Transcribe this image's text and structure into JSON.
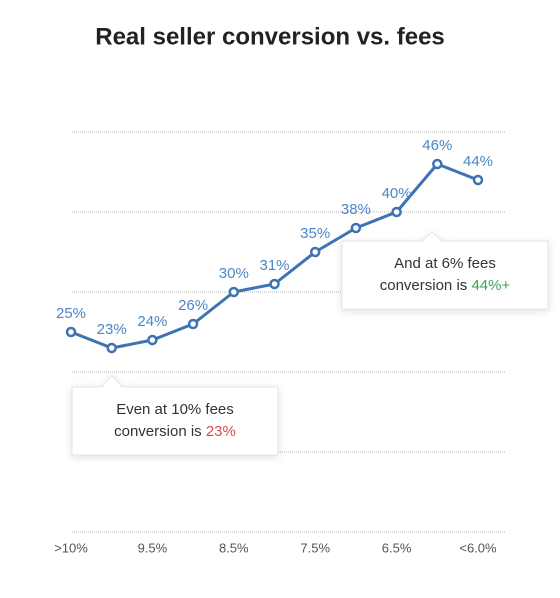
{
  "chart_data": {
    "type": "line",
    "title": "Real seller conversion vs. fees",
    "categories": [
      ">10%",
      null,
      "9.5%",
      null,
      "8.5%",
      null,
      "7.5%",
      null,
      "6.5%",
      null,
      "<6.0%"
    ],
    "series": [
      {
        "color": "#3d72b4",
        "values": [
          25,
          23,
          24,
          26,
          30,
          31,
          35,
          38,
          40,
          46,
          44
        ],
        "value_labels": [
          "25%",
          "23%",
          "24%",
          "26%",
          "30%",
          "31%",
          "35%",
          "38%",
          "40%",
          "46%",
          "44%"
        ]
      }
    ],
    "ylim": [
      0,
      50
    ],
    "yticks": [
      0,
      10,
      20,
      30,
      40,
      50
    ],
    "grid": true,
    "annotations": [
      {
        "lines": [
          "Even at 10% fees",
          "conversion is"
        ],
        "highlight": "23%",
        "highlight_color": "#e0474c"
      },
      {
        "lines": [
          "And at 6% fees",
          "conversion is"
        ],
        "highlight": "44%+",
        "highlight_color": "#3aa655"
      }
    ]
  }
}
